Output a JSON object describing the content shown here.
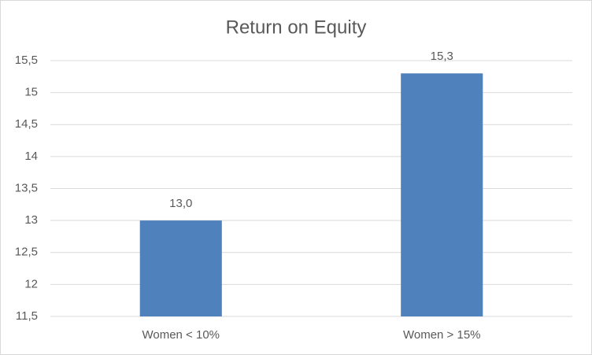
{
  "chart_data": {
    "type": "bar",
    "title": "Return on Equity",
    "categories": [
      "Women < 10%",
      "Women > 15%"
    ],
    "values": [
      13.0,
      15.3
    ],
    "value_labels": [
      "13,0",
      "15,3"
    ],
    "color": "#4f81bd",
    "ylim": [
      11.5,
      15.5
    ],
    "yticks": [
      {
        "value": 11.5,
        "label": "11,5"
      },
      12,
      {
        "value": 12.5,
        "label": "12,5"
      },
      13,
      {
        "value": 13.5,
        "label": "13,5"
      },
      14,
      {
        "value": 14.5,
        "label": "14,5"
      },
      15,
      {
        "value": 15.5,
        "label": "15,5"
      }
    ],
    "grid": true
  }
}
